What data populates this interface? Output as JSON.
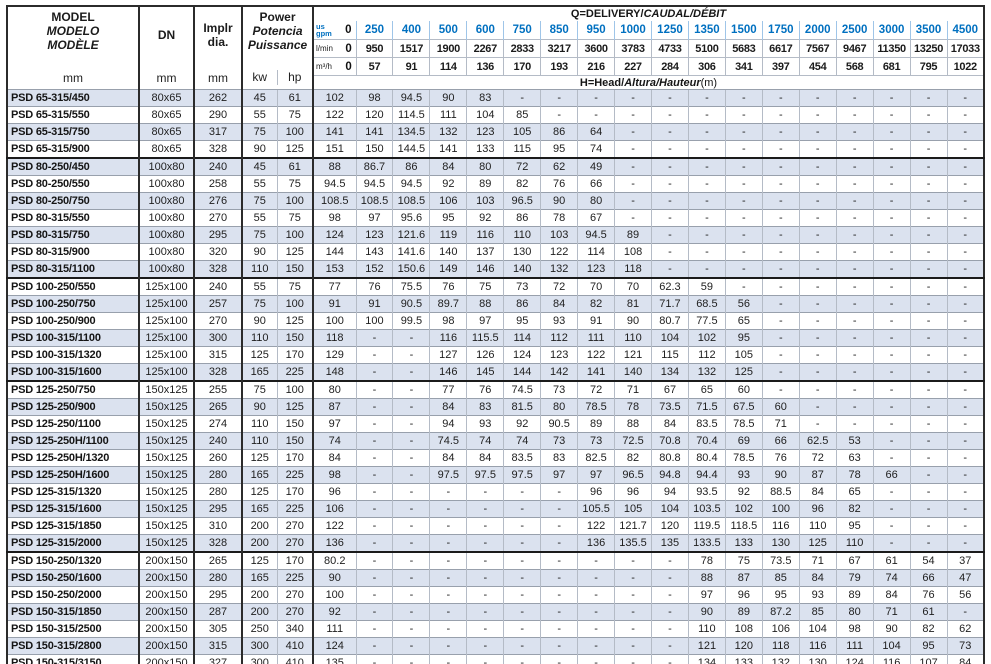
{
  "header": {
    "model": {
      "line1": "MODEL",
      "line2": "MODELO",
      "line3": "MODÈLE",
      "unit": "mm"
    },
    "dn": {
      "label": "DN",
      "unit": "mm"
    },
    "impeller": {
      "line1": "Implr",
      "line2": "dia.",
      "unit": "mm"
    },
    "power": {
      "line1": "Power",
      "line2": "Potencia",
      "line3": "Puissance",
      "unit_kw": "kw",
      "unit_hp": "hp"
    },
    "q_title": {
      "plain": "Q=DELIVERY/",
      "italic": "CAUDAL/DÉBIT"
    },
    "h_note": {
      "plain": "H=Head/",
      "italic": "Altura/Hauteur",
      "suffix": "(m)"
    },
    "units": {
      "gpm_top": "us",
      "gpm_bottom": "gpm",
      "lmin": "l/min",
      "m3h": "m³/h"
    }
  },
  "flows": {
    "gpm": [
      "0",
      "250",
      "400",
      "500",
      "600",
      "750",
      "850",
      "950",
      "1000",
      "1250",
      "1350",
      "1500",
      "1750",
      "2000",
      "2500",
      "3000",
      "3500",
      "4500"
    ],
    "lmin": [
      "0",
      "950",
      "1517",
      "1900",
      "2267",
      "2833",
      "3217",
      "3600",
      "3783",
      "4733",
      "5100",
      "5683",
      "6617",
      "7567",
      "9467",
      "11350",
      "13250",
      "17033"
    ],
    "m3h": [
      "0",
      "57",
      "91",
      "114",
      "136",
      "170",
      "193",
      "216",
      "227",
      "284",
      "306",
      "341",
      "397",
      "454",
      "568",
      "681",
      "795",
      "1022"
    ]
  },
  "rows": [
    {
      "model": "PSD 65-315/450",
      "dn": "80x65",
      "dia": "262",
      "kw": "45",
      "hp": "61",
      "h": [
        "102",
        "98",
        "94.5",
        "90",
        "83",
        "-",
        "-",
        "-",
        "-",
        "-",
        "-",
        "-",
        "-",
        "-",
        "-",
        "-",
        "-",
        "-"
      ]
    },
    {
      "model": "PSD 65-315/550",
      "dn": "80x65",
      "dia": "290",
      "kw": "55",
      "hp": "75",
      "h": [
        "122",
        "120",
        "114.5",
        "111",
        "104",
        "85",
        "-",
        "-",
        "-",
        "-",
        "-",
        "-",
        "-",
        "-",
        "-",
        "-",
        "-",
        "-"
      ]
    },
    {
      "model": "PSD 65-315/750",
      "dn": "80x65",
      "dia": "317",
      "kw": "75",
      "hp": "100",
      "h": [
        "141",
        "141",
        "134.5",
        "132",
        "123",
        "105",
        "86",
        "64",
        "-",
        "-",
        "-",
        "-",
        "-",
        "-",
        "-",
        "-",
        "-",
        "-"
      ]
    },
    {
      "model": "PSD 65-315/900",
      "dn": "80x65",
      "dia": "328",
      "kw": "90",
      "hp": "125",
      "h": [
        "151",
        "150",
        "144.5",
        "141",
        "133",
        "115",
        "95",
        "74",
        "-",
        "-",
        "-",
        "-",
        "-",
        "-",
        "-",
        "-",
        "-",
        "-"
      ]
    },
    {
      "model": "PSD 80-250/450",
      "dn": "100x80",
      "dia": "240",
      "kw": "45",
      "hp": "61",
      "h": [
        "88",
        "86.7",
        "86",
        "84",
        "80",
        "72",
        "62",
        "49",
        "-",
        "-",
        "-",
        "-",
        "-",
        "-",
        "-",
        "-",
        "-",
        "-"
      ]
    },
    {
      "model": "PSD 80-250/550",
      "dn": "100x80",
      "dia": "258",
      "kw": "55",
      "hp": "75",
      "h": [
        "94.5",
        "94.5",
        "94.5",
        "92",
        "89",
        "82",
        "76",
        "66",
        "-",
        "-",
        "-",
        "-",
        "-",
        "-",
        "-",
        "-",
        "-",
        "-"
      ]
    },
    {
      "model": "PSD 80-250/750",
      "dn": "100x80",
      "dia": "276",
      "kw": "75",
      "hp": "100",
      "h": [
        "108.5",
        "108.5",
        "108.5",
        "106",
        "103",
        "96.5",
        "90",
        "80",
        "-",
        "-",
        "-",
        "-",
        "-",
        "-",
        "-",
        "-",
        "-",
        "-"
      ]
    },
    {
      "model": "PSD 80-315/550",
      "dn": "100x80",
      "dia": "270",
      "kw": "55",
      "hp": "75",
      "h": [
        "98",
        "97",
        "95.6",
        "95",
        "92",
        "86",
        "78",
        "67",
        "-",
        "-",
        "-",
        "-",
        "-",
        "-",
        "-",
        "-",
        "-",
        "-"
      ]
    },
    {
      "model": "PSD 80-315/750",
      "dn": "100x80",
      "dia": "295",
      "kw": "75",
      "hp": "100",
      "h": [
        "124",
        "123",
        "121.6",
        "119",
        "116",
        "110",
        "103",
        "94.5",
        "89",
        "-",
        "-",
        "-",
        "-",
        "-",
        "-",
        "-",
        "-",
        "-"
      ]
    },
    {
      "model": "PSD 80-315/900",
      "dn": "100x80",
      "dia": "320",
      "kw": "90",
      "hp": "125",
      "h": [
        "144",
        "143",
        "141.6",
        "140",
        "137",
        "130",
        "122",
        "114",
        "108",
        "-",
        "-",
        "-",
        "-",
        "-",
        "-",
        "-",
        "-",
        "-"
      ]
    },
    {
      "model": "PSD 80-315/1100",
      "dn": "100x80",
      "dia": "328",
      "kw": "110",
      "hp": "150",
      "h": [
        "153",
        "152",
        "150.6",
        "149",
        "146",
        "140",
        "132",
        "123",
        "118",
        "-",
        "-",
        "-",
        "-",
        "-",
        "-",
        "-",
        "-",
        "-"
      ]
    },
    {
      "model": "PSD 100-250/550",
      "dn": "125x100",
      "dia": "240",
      "kw": "55",
      "hp": "75",
      "h": [
        "77",
        "76",
        "75.5",
        "76",
        "75",
        "73",
        "72",
        "70",
        "70",
        "62.3",
        "59",
        "-",
        "-",
        "-",
        "-",
        "-",
        "-",
        "-"
      ]
    },
    {
      "model": "PSD 100-250/750",
      "dn": "125x100",
      "dia": "257",
      "kw": "75",
      "hp": "100",
      "h": [
        "91",
        "91",
        "90.5",
        "89.7",
        "88",
        "86",
        "84",
        "82",
        "81",
        "71.7",
        "68.5",
        "56",
        "-",
        "-",
        "-",
        "-",
        "-",
        "-"
      ]
    },
    {
      "model": "PSD 100-250/900",
      "dn": "125x100",
      "dia": "270",
      "kw": "90",
      "hp": "125",
      "h": [
        "100",
        "100",
        "99.5",
        "98",
        "97",
        "95",
        "93",
        "91",
        "90",
        "80.7",
        "77.5",
        "65",
        "-",
        "-",
        "-",
        "-",
        "-",
        "-"
      ]
    },
    {
      "model": "PSD 100-315/1100",
      "dn": "125x100",
      "dia": "300",
      "kw": "110",
      "hp": "150",
      "h": [
        "118",
        "-",
        "-",
        "116",
        "115.5",
        "114",
        "112",
        "111",
        "110",
        "104",
        "102",
        "95",
        "-",
        "-",
        "-",
        "-",
        "-",
        "-"
      ]
    },
    {
      "model": "PSD 100-315/1320",
      "dn": "125x100",
      "dia": "315",
      "kw": "125",
      "hp": "170",
      "h": [
        "129",
        "-",
        "-",
        "127",
        "126",
        "124",
        "123",
        "122",
        "121",
        "115",
        "112",
        "105",
        "-",
        "-",
        "-",
        "-",
        "-",
        "-"
      ]
    },
    {
      "model": "PSD 100-315/1600",
      "dn": "125x100",
      "dia": "328",
      "kw": "165",
      "hp": "225",
      "h": [
        "148",
        "-",
        "-",
        "146",
        "145",
        "144",
        "142",
        "141",
        "140",
        "134",
        "132",
        "125",
        "-",
        "-",
        "-",
        "-",
        "-",
        "-"
      ]
    },
    {
      "model": "PSD 125-250/750",
      "dn": "150x125",
      "dia": "255",
      "kw": "75",
      "hp": "100",
      "h": [
        "80",
        "-",
        "-",
        "77",
        "76",
        "74.5",
        "73",
        "72",
        "71",
        "67",
        "65",
        "60",
        "-",
        "-",
        "-",
        "-",
        "-",
        "-"
      ]
    },
    {
      "model": "PSD 125-250/900",
      "dn": "150x125",
      "dia": "265",
      "kw": "90",
      "hp": "125",
      "h": [
        "87",
        "-",
        "-",
        "84",
        "83",
        "81.5",
        "80",
        "78.5",
        "78",
        "73.5",
        "71.5",
        "67.5",
        "60",
        "-",
        "-",
        "-",
        "-",
        "-"
      ]
    },
    {
      "model": "PSD 125-250/1100",
      "dn": "150x125",
      "dia": "274",
      "kw": "110",
      "hp": "150",
      "h": [
        "97",
        "-",
        "-",
        "94",
        "93",
        "92",
        "90.5",
        "89",
        "88",
        "84",
        "83.5",
        "78.5",
        "71",
        "-",
        "-",
        "-",
        "-",
        "-"
      ]
    },
    {
      "model": "PSD 125-250H/1100",
      "dn": "150x125",
      "dia": "240",
      "kw": "110",
      "hp": "150",
      "h": [
        "74",
        "-",
        "-",
        "74.5",
        "74",
        "74",
        "73",
        "73",
        "72.5",
        "70.8",
        "70.4",
        "69",
        "66",
        "62.5",
        "53",
        "-",
        "-",
        "-"
      ]
    },
    {
      "model": "PSD 125-250H/1320",
      "dn": "150x125",
      "dia": "260",
      "kw": "125",
      "hp": "170",
      "h": [
        "84",
        "-",
        "-",
        "84",
        "84",
        "83.5",
        "83",
        "82.5",
        "82",
        "80.8",
        "80.4",
        "78.5",
        "76",
        "72",
        "63",
        "-",
        "-",
        "-"
      ]
    },
    {
      "model": "PSD 125-250H/1600",
      "dn": "150x125",
      "dia": "280",
      "kw": "165",
      "hp": "225",
      "h": [
        "98",
        "-",
        "-",
        "97.5",
        "97.5",
        "97.5",
        "97",
        "97",
        "96.5",
        "94.8",
        "94.4",
        "93",
        "90",
        "87",
        "78",
        "66",
        "-",
        "-"
      ]
    },
    {
      "model": "PSD 125-315/1320",
      "dn": "150x125",
      "dia": "280",
      "kw": "125",
      "hp": "170",
      "h": [
        "96",
        "-",
        "-",
        "-",
        "-",
        "-",
        "-",
        "96",
        "96",
        "94",
        "93.5",
        "92",
        "88.5",
        "84",
        "65",
        "-",
        "-",
        "-"
      ]
    },
    {
      "model": "PSD 125-315/1600",
      "dn": "150x125",
      "dia": "295",
      "kw": "165",
      "hp": "225",
      "h": [
        "106",
        "-",
        "-",
        "-",
        "-",
        "-",
        "-",
        "105.5",
        "105",
        "104",
        "103.5",
        "102",
        "100",
        "96",
        "82",
        "-",
        "-",
        "-"
      ]
    },
    {
      "model": "PSD 125-315/1850",
      "dn": "150x125",
      "dia": "310",
      "kw": "200",
      "hp": "270",
      "h": [
        "122",
        "-",
        "-",
        "-",
        "-",
        "-",
        "-",
        "122",
        "121.7",
        "120",
        "119.5",
        "118.5",
        "116",
        "110",
        "95",
        "-",
        "-",
        "-"
      ]
    },
    {
      "model": "PSD 125-315/2000",
      "dn": "150x125",
      "dia": "328",
      "kw": "200",
      "hp": "270",
      "h": [
        "136",
        "-",
        "-",
        "-",
        "-",
        "-",
        "-",
        "136",
        "135.5",
        "135",
        "133.5",
        "133",
        "130",
        "125",
        "110",
        "-",
        "-",
        "-"
      ]
    },
    {
      "model": "PSD 150-250/1320",
      "dn": "200x150",
      "dia": "265",
      "kw": "125",
      "hp": "170",
      "h": [
        "80.2",
        "-",
        "-",
        "-",
        "-",
        "-",
        "-",
        "-",
        "-",
        "-",
        "78",
        "75",
        "73.5",
        "71",
        "67",
        "61",
        "54",
        "37"
      ]
    },
    {
      "model": "PSD 150-250/1600",
      "dn": "200x150",
      "dia": "280",
      "kw": "165",
      "hp": "225",
      "h": [
        "90",
        "-",
        "-",
        "-",
        "-",
        "-",
        "-",
        "-",
        "-",
        "-",
        "88",
        "87",
        "85",
        "84",
        "79",
        "74",
        "66",
        "47"
      ]
    },
    {
      "model": "PSD 150-250/2000",
      "dn": "200x150",
      "dia": "295",
      "kw": "200",
      "hp": "270",
      "h": [
        "100",
        "-",
        "-",
        "-",
        "-",
        "-",
        "-",
        "-",
        "-",
        "-",
        "97",
        "96",
        "95",
        "93",
        "89",
        "84",
        "76",
        "56"
      ]
    },
    {
      "model": "PSD 150-315/1850",
      "dn": "200x150",
      "dia": "287",
      "kw": "200",
      "hp": "270",
      "h": [
        "92",
        "-",
        "-",
        "-",
        "-",
        "-",
        "-",
        "-",
        "-",
        "-",
        "90",
        "89",
        "87.2",
        "85",
        "80",
        "71",
        "61",
        "-"
      ]
    },
    {
      "model": "PSD 150-315/2500",
      "dn": "200x150",
      "dia": "305",
      "kw": "250",
      "hp": "340",
      "h": [
        "111",
        "-",
        "-",
        "-",
        "-",
        "-",
        "-",
        "-",
        "-",
        "-",
        "110",
        "108",
        "106",
        "104",
        "98",
        "90",
        "82",
        "62"
      ]
    },
    {
      "model": "PSD 150-315/2800",
      "dn": "200x150",
      "dia": "315",
      "kw": "300",
      "hp": "410",
      "h": [
        "124",
        "-",
        "-",
        "-",
        "-",
        "-",
        "-",
        "-",
        "-",
        "-",
        "121",
        "120",
        "118",
        "116",
        "111",
        "104",
        "95",
        "73"
      ]
    },
    {
      "model": "PSD 150-315/3150",
      "dn": "200x150",
      "dia": "327",
      "kw": "300",
      "hp": "410",
      "h": [
        "135",
        "-",
        "-",
        "-",
        "-",
        "-",
        "-",
        "-",
        "-",
        "-",
        "134",
        "133",
        "132",
        "130",
        "124",
        "116",
        "107",
        "84"
      ]
    }
  ],
  "group_start_indices": [
    4,
    11,
    17,
    27
  ],
  "colors": {
    "accent_blue": "#0070C0",
    "stripe": "#DBE2EF",
    "grid_light": "#B4BBC6",
    "grid_dark": "#2B2B2B",
    "gpm_grid": "#9FC5E8"
  }
}
